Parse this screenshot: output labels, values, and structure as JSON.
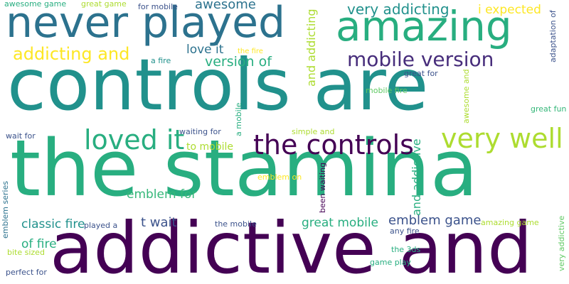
{
  "words": {
    "controls_are": "controls are",
    "the_stamina": "the stamina",
    "addictive_and": "addictive and",
    "never_played": "never played",
    "amazing": "amazing",
    "the_controls": "the controls",
    "very_well": "very well",
    "loved_it": "loved it",
    "mobile_version": "mobile version",
    "addicting_and": "addicting and",
    "very_addicting": "very addicting",
    "i_expected": "i expected",
    "awesome": "awesome",
    "awesome_game": "awesome game",
    "great_game": "great game",
    "for_mobile": "for mobile",
    "love_it": "love it",
    "version_of": "version of",
    "the_fire": "the fire",
    "a_fire": "a fire",
    "and_addicting": "and addicting",
    "adaptation_of": "adaptation of",
    "great_for": "great for",
    "mobile_fire": "mobile fire",
    "awesome_and": "awesome and",
    "great_fun": "great fun",
    "a_mobile": "a mobile",
    "wait_for": "wait for",
    "waiting_for": "waiting for",
    "simple_and": "simple and",
    "to_mobile": "to mobile",
    "and_addictive": "and addictive",
    "emblem_on": "emblem on",
    "emblem_for": "emblem for",
    "been_waiting": "been waiting",
    "emblem_game": "emblem game",
    "classic_fire": "classic fire",
    "played_a": "played a",
    "t_wait": "t wait",
    "the_mobile": "the mobile",
    "great_mobile": "great mobile",
    "amazing_game": "amazing game",
    "any_fire": "any fire",
    "very_addictive": "very addictive",
    "emblem_series": "emblem series",
    "of_fire": "of fire",
    "the_3ds": "the 3ds",
    "bite_sized": "bite sized",
    "game_play": "game play",
    "perfect_for": "perfect for"
  }
}
